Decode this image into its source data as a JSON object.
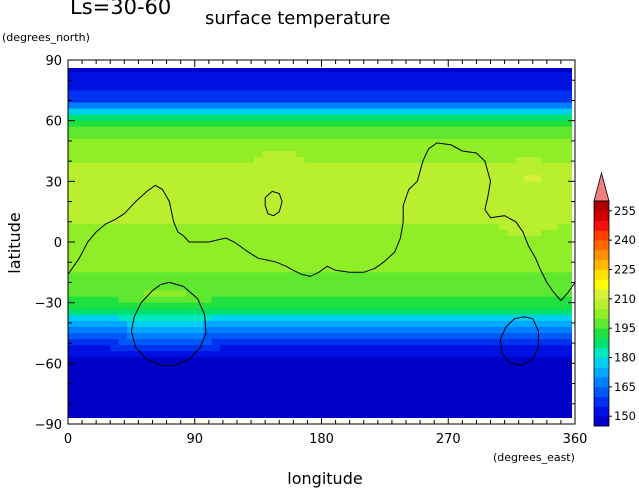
{
  "chart_data": {
    "type": "heatmap",
    "title_left": "Ls=30-60",
    "title": "surface temperature",
    "ylabel": "latitude",
    "yunit": "(degrees_north)",
    "xlabel": "longitude",
    "xunit": "(degrees_east)",
    "xlim": [
      0,
      360
    ],
    "ylim": [
      -90,
      90
    ],
    "x_ticks": [
      "0",
      "90",
      "180",
      "270",
      "360"
    ],
    "y_ticks": [
      "90",
      "60",
      "30",
      "0",
      "−30",
      "−60",
      "−90"
    ],
    "x_tick_values": [
      0,
      90,
      180,
      270,
      360
    ],
    "y_tick_values": [
      90,
      60,
      30,
      0,
      -30,
      -60,
      -90
    ],
    "colorbar": {
      "labels": [
        "255",
        "240",
        "225",
        "210",
        "195",
        "180",
        "165",
        "150"
      ],
      "levels": [
        145,
        150,
        155,
        160,
        165,
        170,
        175,
        180,
        185,
        190,
        195,
        200,
        205,
        210,
        215,
        220,
        225,
        230,
        235,
        240,
        245,
        250,
        255,
        260
      ],
      "colors": [
        "#0000c8",
        "#0010e0",
        "#0030f0",
        "#0058f8",
        "#0080ff",
        "#00a8ff",
        "#00d0f0",
        "#00e8c0",
        "#00e070",
        "#20e040",
        "#60e830",
        "#90ee28",
        "#b8f030",
        "#d8f038",
        "#ffff00",
        "#ffe000",
        "#ffb800",
        "#ff9000",
        "#ff6800",
        "#ff4000",
        "#f01010",
        "#d00000",
        "#b00000"
      ],
      "extend_color": "#f08080"
    },
    "latitude_profile": [
      {
        "lat": 90,
        "value": 145
      },
      {
        "lat": 85,
        "value": 148
      },
      {
        "lat": 80,
        "value": 152
      },
      {
        "lat": 75,
        "value": 155
      },
      {
        "lat": 70,
        "value": 160
      },
      {
        "lat": 67,
        "value": 170
      },
      {
        "lat": 62,
        "value": 185
      },
      {
        "lat": 55,
        "value": 198
      },
      {
        "lat": 45,
        "value": 203
      },
      {
        "lat": 30,
        "value": 207
      },
      {
        "lat": 15,
        "value": 206
      },
      {
        "lat": 0,
        "value": 203
      },
      {
        "lat": -15,
        "value": 200
      },
      {
        "lat": -25,
        "value": 197
      },
      {
        "lat": -32,
        "value": 190
      },
      {
        "lat": -37,
        "value": 180
      },
      {
        "lat": -42,
        "value": 170
      },
      {
        "lat": -47,
        "value": 162
      },
      {
        "lat": -52,
        "value": 155
      },
      {
        "lat": -57,
        "value": 150
      },
      {
        "lat": -65,
        "value": 147
      },
      {
        "lat": -90,
        "value": 145
      }
    ],
    "warm_regions": [
      {
        "lon": 90,
        "lat": 22,
        "r_lon": 35,
        "r_lat": 16,
        "value": 207
      },
      {
        "lon": 325,
        "lat": 22,
        "r_lon": 32,
        "r_lat": 22,
        "value": 208
      },
      {
        "lon": 330,
        "lat": 31,
        "r_lon": 7,
        "r_lat": 3,
        "value": 215
      },
      {
        "lon": 150,
        "lat": 40,
        "r_lon": 25,
        "r_lat": 10,
        "value": 206
      }
    ],
    "contours": [
      [
        [
          0,
          -16
        ],
        [
          8,
          -8
        ],
        [
          14,
          0
        ],
        [
          20,
          5
        ],
        [
          27,
          9
        ],
        [
          33,
          11
        ],
        [
          40,
          14
        ],
        [
          48,
          20
        ],
        [
          56,
          25
        ],
        [
          62,
          28
        ],
        [
          67,
          26
        ],
        [
          72,
          20
        ],
        [
          75,
          10
        ],
        [
          78,
          5
        ],
        [
          82,
          3
        ],
        [
          86,
          0
        ],
        [
          92,
          0
        ],
        [
          100,
          0
        ],
        [
          106,
          1
        ],
        [
          112,
          2
        ],
        [
          118,
          0
        ],
        [
          122,
          -2
        ],
        [
          128,
          -5
        ],
        [
          135,
          -8
        ],
        [
          142,
          -9
        ],
        [
          148,
          -10
        ],
        [
          155,
          -12
        ],
        [
          160,
          -14
        ],
        [
          166,
          -16
        ],
        [
          172,
          -17
        ],
        [
          178,
          -15
        ],
        [
          184,
          -12
        ],
        [
          190,
          -14
        ],
        [
          200,
          -15
        ],
        [
          210,
          -15
        ],
        [
          218,
          -13
        ],
        [
          224,
          -10
        ],
        [
          232,
          -5
        ],
        [
          236,
          2
        ],
        [
          238,
          10
        ],
        [
          238,
          18
        ],
        [
          242,
          26
        ],
        [
          248,
          30
        ],
        [
          252,
          40
        ],
        [
          256,
          46
        ],
        [
          262,
          49
        ],
        [
          272,
          48
        ],
        [
          280,
          45
        ],
        [
          290,
          44
        ],
        [
          296,
          40
        ],
        [
          300,
          30
        ],
        [
          298,
          22
        ],
        [
          296,
          16
        ],
        [
          300,
          12
        ],
        [
          310,
          13
        ],
        [
          318,
          10
        ],
        [
          323,
          5
        ],
        [
          327,
          -2
        ],
        [
          332,
          -8
        ],
        [
          335,
          -13
        ],
        [
          340,
          -20
        ],
        [
          345,
          -25
        ],
        [
          350,
          -29
        ],
        [
          355,
          -25
        ],
        [
          360,
          -20
        ]
      ],
      [
        [
          140,
          22
        ],
        [
          145,
          25
        ],
        [
          150,
          24
        ],
        [
          152,
          20
        ],
        [
          150,
          15
        ],
        [
          146,
          13
        ],
        [
          142,
          14
        ],
        [
          140,
          18
        ],
        [
          140,
          22
        ]
      ],
      [
        [
          72,
          -20
        ],
        [
          82,
          -22
        ],
        [
          92,
          -28
        ],
        [
          97,
          -36
        ],
        [
          98,
          -45
        ],
        [
          94,
          -52
        ],
        [
          86,
          -58
        ],
        [
          76,
          -61
        ],
        [
          66,
          -61
        ],
        [
          56,
          -58
        ],
        [
          48,
          -52
        ],
        [
          45,
          -44
        ],
        [
          47,
          -37
        ],
        [
          52,
          -30
        ],
        [
          60,
          -24
        ],
        [
          66,
          -21
        ],
        [
          72,
          -20
        ]
      ],
      [
        [
          324,
          -37
        ],
        [
          330,
          -38
        ],
        [
          334,
          -44
        ],
        [
          334,
          -52
        ],
        [
          330,
          -58
        ],
        [
          322,
          -61
        ],
        [
          314,
          -60
        ],
        [
          308,
          -55
        ],
        [
          307,
          -48
        ],
        [
          311,
          -42
        ],
        [
          317,
          -38
        ],
        [
          324,
          -37
        ]
      ]
    ]
  }
}
